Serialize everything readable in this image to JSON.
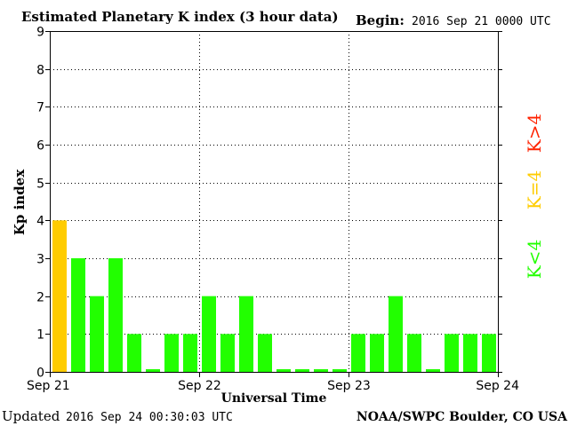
{
  "header": {
    "title": "Estimated Planetary K index (3 hour data)",
    "begin_label": "Begin:",
    "begin_value": "2016 Sep 21 0000 UTC"
  },
  "footer": {
    "updated_label": "Updated",
    "updated_value": "2016 Sep 24 00:30:03 UTC",
    "credit": "NOAA/SWPC Boulder, CO USA"
  },
  "legend": {
    "high": "K>4",
    "mid": "K=4",
    "low": "K<4"
  },
  "colors": {
    "low": "#22ff00",
    "mid": "#ffcc00",
    "high": "#ff2200",
    "axis": "#000000",
    "grid": "#000000"
  },
  "chart_data": {
    "type": "bar",
    "title": "Estimated Planetary K index (3 hour data)",
    "xlabel": "Universal Time",
    "ylabel": "Kp index",
    "ylim": [
      0,
      9
    ],
    "yticks": [
      0,
      1,
      2,
      3,
      4,
      5,
      6,
      7,
      8,
      9
    ],
    "xticks": [
      "Sep 21",
      "Sep 22",
      "Sep 23",
      "Sep 24"
    ],
    "grid": true,
    "series": [
      {
        "values": [
          4,
          3,
          2,
          3,
          1,
          0.07,
          1,
          1,
          2,
          1,
          2,
          1,
          0.07,
          0.07,
          0.07,
          0.07,
          1,
          1,
          2,
          1,
          0.07,
          1,
          1,
          1
        ]
      }
    ]
  }
}
